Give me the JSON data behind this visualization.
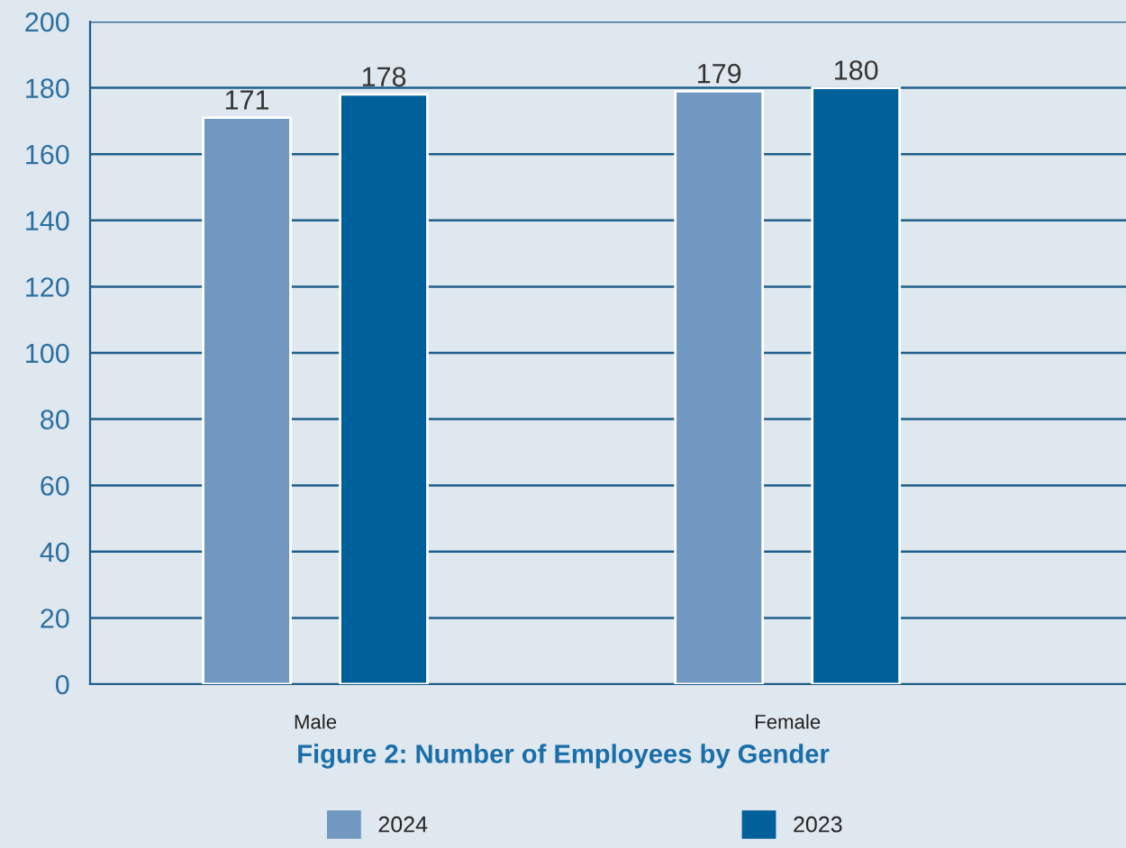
{
  "chart_data": {
    "type": "bar",
    "title": "Figure 2: Number of Employees by Gender",
    "categories": [
      "Male",
      "Female"
    ],
    "series": [
      {
        "name": "2024",
        "color": "#7098c0",
        "values": [
          171,
          179
        ]
      },
      {
        "name": "2023",
        "color": "#00609a",
        "values": [
          178,
          180
        ]
      }
    ],
    "ylim": [
      0,
      200
    ],
    "yticks": [
      0,
      20,
      40,
      60,
      80,
      100,
      120,
      140,
      160,
      180,
      200
    ],
    "grid": "y",
    "legend": "bottom",
    "data_labels": true
  }
}
